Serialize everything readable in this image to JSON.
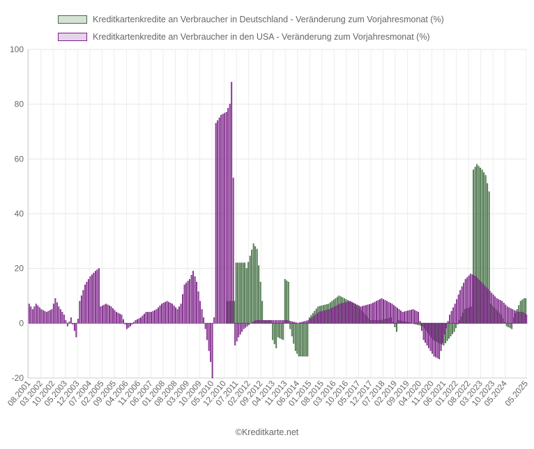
{
  "chart_data": {
    "type": "bar",
    "title": "",
    "xlabel": "",
    "ylabel": "",
    "ylim": [
      -20,
      100
    ],
    "yticks": [
      -20,
      0,
      20,
      40,
      60,
      80,
      100
    ],
    "grid": true,
    "legend_position": "top",
    "x_start": "08.2001",
    "x_end": "05.2025",
    "xtick_labels": [
      "08.2001",
      "03.2002",
      "10.2002",
      "05.2003",
      "12.2003",
      "07.2004",
      "02.2005",
      "09.2005",
      "04.2006",
      "11.2006",
      "06.2007",
      "01.2008",
      "08.2008",
      "03.2009",
      "10.2009",
      "05.2010",
      "12.2010",
      "07.2011",
      "02.2012",
      "09.2012",
      "04.2013",
      "11.2013",
      "06.2014",
      "01.2015",
      "08.2015",
      "03.2016",
      "10.2016",
      "05.2017",
      "12.2017",
      "07.2018",
      "02.2019",
      "09.2019",
      "04.2020",
      "11.2020",
      "06.2021",
      "01.2022",
      "08.2022",
      "03.2023",
      "10.2023",
      "05.2024",
      "05.2025"
    ],
    "series": [
      {
        "name": "Kreditkartenkredite an Verbraucher in Deutschland - Veränderung zum Vorjahresmonat (%)",
        "color": "#3d6b3d",
        "fill": "#d6e2d6",
        "anchors": [
          [
            "08.2001",
            0
          ],
          [
            "01.2011",
            0
          ],
          [
            "02.2011",
            8
          ],
          [
            "06.2011",
            8
          ],
          [
            "07.2011",
            22
          ],
          [
            "12.2011",
            22
          ],
          [
            "01.2012",
            20
          ],
          [
            "05.2012",
            29
          ],
          [
            "07.2012",
            27
          ],
          [
            "09.2012",
            15
          ],
          [
            "11.2012",
            1
          ],
          [
            "03.2013",
            1
          ],
          [
            "04.2013",
            -6
          ],
          [
            "06.2013",
            -9
          ],
          [
            "07.2013",
            -5
          ],
          [
            "10.2013",
            -6
          ],
          [
            "11.2013",
            16
          ],
          [
            "01.2014",
            15
          ],
          [
            "02.2014",
            -2
          ],
          [
            "05.2014",
            -10
          ],
          [
            "07.2014",
            -12
          ],
          [
            "09.2014",
            -12
          ],
          [
            "12.2014",
            -12
          ],
          [
            "01.2015",
            2
          ],
          [
            "06.2015",
            6
          ],
          [
            "12.2015",
            7
          ],
          [
            "06.2016",
            10
          ],
          [
            "12.2016",
            8
          ],
          [
            "05.2017",
            6
          ],
          [
            "12.2017",
            1
          ],
          [
            "06.2018",
            1
          ],
          [
            "12.2018",
            2
          ],
          [
            "03.2019",
            -3
          ],
          [
            "04.2019",
            1
          ],
          [
            "12.2019",
            0
          ],
          [
            "06.2020",
            -1
          ],
          [
            "12.2020",
            -6
          ],
          [
            "06.2021",
            -8
          ],
          [
            "12.2021",
            -3
          ],
          [
            "03.2022",
            1
          ],
          [
            "06.2022",
            5
          ],
          [
            "10.2022",
            6
          ],
          [
            "11.2022",
            56
          ],
          [
            "01.2023",
            58
          ],
          [
            "04.2023",
            56
          ],
          [
            "06.2023",
            54
          ],
          [
            "08.2023",
            48
          ],
          [
            "09.2023",
            7
          ],
          [
            "12.2023",
            5
          ],
          [
            "03.2024",
            3
          ],
          [
            "06.2024",
            -1
          ],
          [
            "09.2024",
            -2
          ],
          [
            "10.2024",
            2
          ],
          [
            "12.2024",
            5
          ],
          [
            "02.2025",
            8
          ],
          [
            "04.2025",
            9
          ],
          [
            "05.2025",
            9
          ]
        ]
      },
      {
        "name": "Kreditkartenkredite an Verbraucher in den USA - Veränderung zum Vorjahresmonat (%)",
        "color": "#7a1f86",
        "fill": "#e6d4ea",
        "anchors": [
          [
            "08.2001",
            7
          ],
          [
            "10.2001",
            5
          ],
          [
            "12.2001",
            7
          ],
          [
            "03.2002",
            5
          ],
          [
            "06.2002",
            4
          ],
          [
            "09.2002",
            5
          ],
          [
            "11.2002",
            9
          ],
          [
            "01.2003",
            6
          ],
          [
            "04.2003",
            3
          ],
          [
            "06.2003",
            -1
          ],
          [
            "08.2003",
            2
          ],
          [
            "11.2003",
            -5
          ],
          [
            "01.2004",
            8
          ],
          [
            "04.2004",
            14
          ],
          [
            "07.2004",
            17
          ],
          [
            "10.2004",
            19
          ],
          [
            "12.2004",
            20
          ],
          [
            "01.2005",
            6
          ],
          [
            "04.2005",
            7
          ],
          [
            "07.2005",
            6
          ],
          [
            "10.2005",
            4
          ],
          [
            "01.2006",
            3
          ],
          [
            "04.2006",
            -2
          ],
          [
            "06.2006",
            -1
          ],
          [
            "09.2006",
            1
          ],
          [
            "12.2006",
            2
          ],
          [
            "03.2007",
            4
          ],
          [
            "06.2007",
            4
          ],
          [
            "09.2007",
            5
          ],
          [
            "12.2007",
            7
          ],
          [
            "03.2008",
            8
          ],
          [
            "06.2008",
            7
          ],
          [
            "09.2008",
            5
          ],
          [
            "11.2008",
            7
          ],
          [
            "01.2009",
            14
          ],
          [
            "04.2009",
            16
          ],
          [
            "06.2009",
            19
          ],
          [
            "08.2009",
            15
          ],
          [
            "10.2009",
            8
          ],
          [
            "12.2009",
            2
          ],
          [
            "02.2010",
            -6
          ],
          [
            "04.2010",
            -14
          ],
          [
            "05.2010",
            -20
          ],
          [
            "06.2010",
            2
          ],
          [
            "07.2010",
            73
          ],
          [
            "10.2010",
            76
          ],
          [
            "01.2011",
            77
          ],
          [
            "03.2011",
            80
          ],
          [
            "04.2011",
            88
          ],
          [
            "05.2011",
            53
          ],
          [
            "06.2011",
            -8
          ],
          [
            "08.2011",
            -5
          ],
          [
            "11.2011",
            -2
          ],
          [
            "03.2012",
            0
          ],
          [
            "06.2012",
            1
          ],
          [
            "12.2012",
            1
          ],
          [
            "06.2013",
            1
          ],
          [
            "12.2013",
            1
          ],
          [
            "06.2014",
            0
          ],
          [
            "12.2014",
            1
          ],
          [
            "06.2015",
            4
          ],
          [
            "12.2015",
            5
          ],
          [
            "06.2016",
            7
          ],
          [
            "12.2016",
            8
          ],
          [
            "06.2017",
            6
          ],
          [
            "12.2017",
            7
          ],
          [
            "06.2018",
            9
          ],
          [
            "12.2018",
            7
          ],
          [
            "06.2019",
            4
          ],
          [
            "12.2019",
            5
          ],
          [
            "03.2020",
            4
          ],
          [
            "06.2020",
            -6
          ],
          [
            "09.2020",
            -9
          ],
          [
            "12.2020",
            -12
          ],
          [
            "03.2021",
            -13
          ],
          [
            "06.2021",
            -4
          ],
          [
            "09.2021",
            3
          ],
          [
            "12.2021",
            7
          ],
          [
            "03.2022",
            12
          ],
          [
            "06.2022",
            16
          ],
          [
            "09.2022",
            18
          ],
          [
            "12.2022",
            17
          ],
          [
            "03.2023",
            15
          ],
          [
            "06.2023",
            13
          ],
          [
            "09.2023",
            11
          ],
          [
            "12.2023",
            9
          ],
          [
            "03.2024",
            8
          ],
          [
            "06.2024",
            6
          ],
          [
            "09.2024",
            5
          ],
          [
            "12.2024",
            4
          ],
          [
            "03.2025",
            4
          ],
          [
            "05.2025",
            3
          ]
        ]
      }
    ]
  },
  "footer": {
    "credit": "©Kreditkarte.net"
  }
}
